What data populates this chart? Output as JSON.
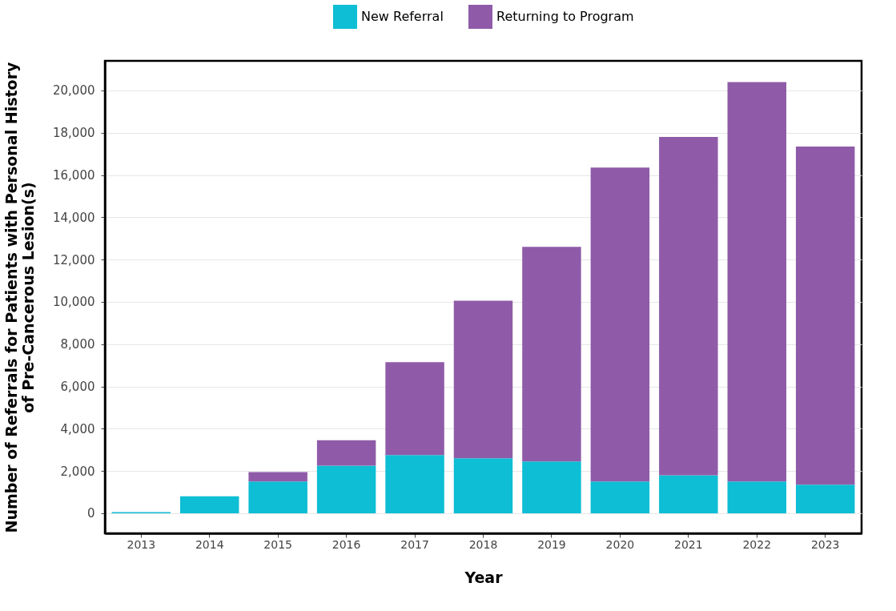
{
  "chart_data": {
    "type": "bar",
    "stacked": true,
    "xlabel": "Year",
    "ylabel": "Number of Referrals for Patients with Personal History of Pre-Cancerous Lesion(s)",
    "categories": [
      "2013",
      "2014",
      "2015",
      "2016",
      "2017",
      "2018",
      "2019",
      "2020",
      "2021",
      "2022",
      "2023"
    ],
    "series": [
      {
        "name": "New Referral",
        "color": "#0dbed4",
        "values": [
          50,
          800,
          1500,
          2250,
          2750,
          2600,
          2450,
          1500,
          1800,
          1500,
          1350
        ]
      },
      {
        "name": "Returning to Program",
        "color": "#8f5ba8",
        "values": [
          0,
          0,
          450,
          1200,
          4400,
          7450,
          10150,
          14850,
          16000,
          18900,
          16000
        ]
      }
    ],
    "ylim": [
      -950,
      21400
    ],
    "yticks": [
      0,
      {
        "value": 2000,
        "label": "2,000"
      },
      {
        "value": 4000,
        "label": "4,000"
      },
      {
        "value": 6000,
        "label": "6,000"
      },
      {
        "value": 8000,
        "label": "8,000"
      },
      {
        "value": 10000,
        "label": "10,000"
      },
      {
        "value": 12000,
        "label": "12,000"
      },
      {
        "value": 14000,
        "label": "14,000"
      },
      {
        "value": 16000,
        "label": "16,000"
      },
      {
        "value": 18000,
        "label": "18,000"
      },
      {
        "value": 20000,
        "label": "20,000"
      }
    ],
    "grid": "y",
    "legend": "top"
  }
}
